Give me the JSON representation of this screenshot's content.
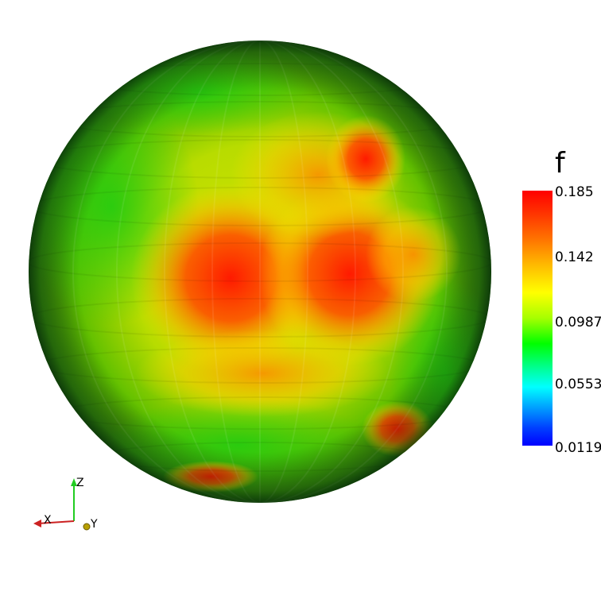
{
  "scene": {
    "field_name": "f",
    "colorbar": {
      "ticks": [
        "0.185",
        "0.142",
        "0.0987",
        "0.0553",
        "0.0119"
      ],
      "colors": [
        "#ff0000",
        "#ffff00",
        "#00ff00",
        "#00ffff",
        "#0000ff"
      ]
    },
    "axes": {
      "x_label": "X",
      "y_label": "Y",
      "z_label": "Z"
    },
    "icons": [
      "sphere-surface",
      "axes-triad-icon"
    ]
  }
}
